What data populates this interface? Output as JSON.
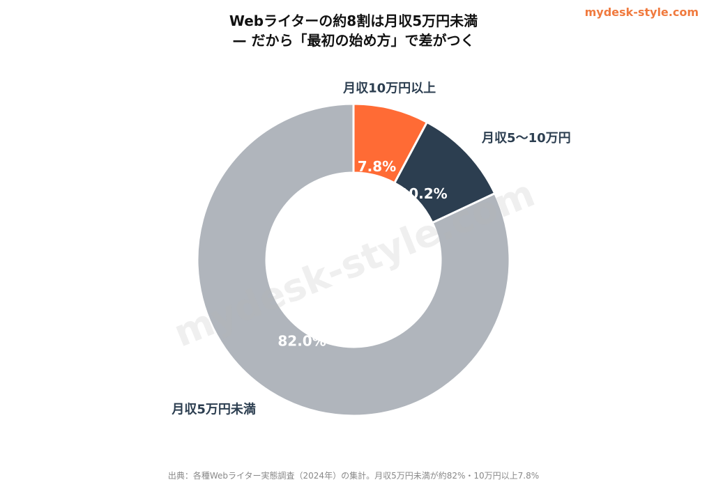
{
  "brand": "mydesk-style.com",
  "title_line1": "Webライターの約8割は月収5万円未満",
  "title_line2": "— だから「最初の始め方」で差がつく",
  "watermark": "mydesk-style.com",
  "source": "出典：各種Webライター実態調査（2024年）の集計。月収5万円未満が約82%・10万円以上7.8%",
  "chart_data": {
    "type": "pie",
    "style": "donut",
    "slices": [
      {
        "label": "月収10万円以上",
        "value": 7.8,
        "value_label": "7.8%",
        "color": "#FF6B35"
      },
      {
        "label": "月収5〜10万円",
        "value": 10.2,
        "value_label": "10.2%",
        "color": "#2C3E50"
      },
      {
        "label": "月収5万円未満",
        "value": 82.0,
        "value_label": "82.0%",
        "color": "#B0B5BC"
      }
    ]
  }
}
